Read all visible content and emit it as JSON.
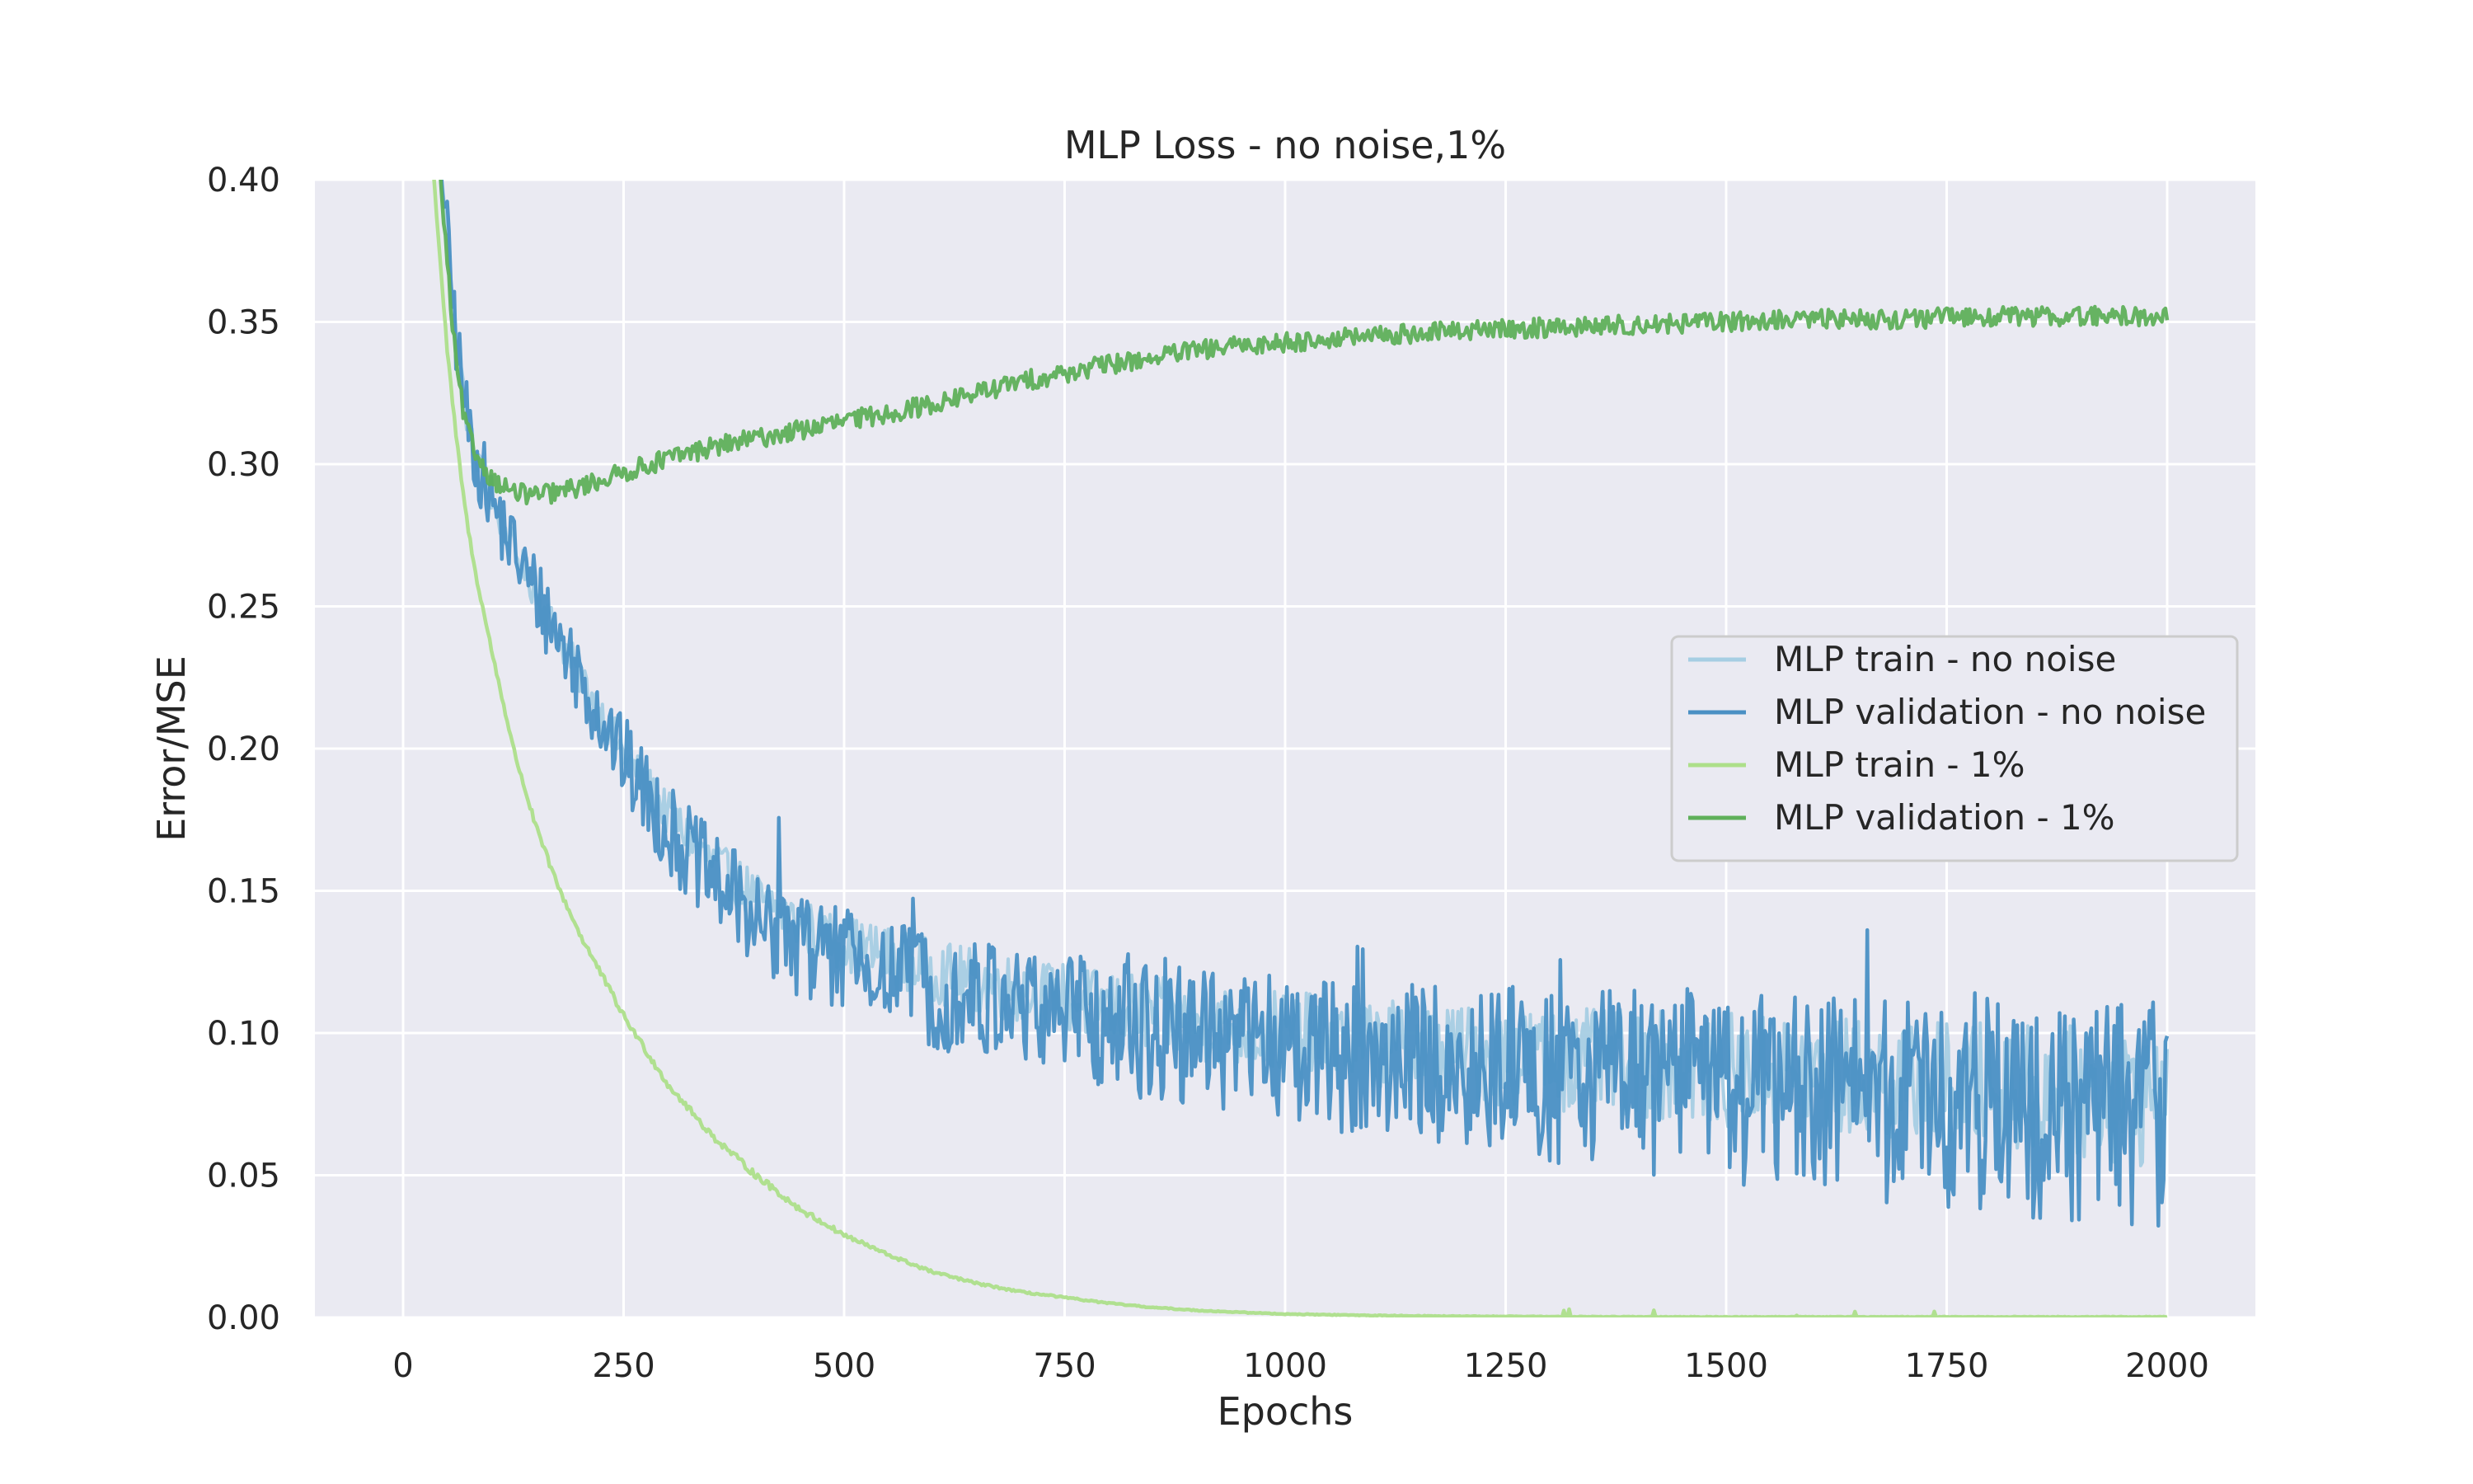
{
  "chart_data": {
    "type": "line",
    "title": "MLP Loss - no noise,1%",
    "xlabel": "Epochs",
    "ylabel": "Error/MSE",
    "xlim": [
      -100,
      2100
    ],
    "ylim": [
      0.0,
      0.4
    ],
    "xticks": [
      0,
      250,
      500,
      750,
      1000,
      1250,
      1500,
      1750,
      2000
    ],
    "yticks": [
      0.0,
      0.05,
      0.1,
      0.15,
      0.2,
      0.25,
      0.3,
      0.35,
      0.4
    ],
    "xtick_labels": [
      "0",
      "250",
      "500",
      "750",
      "1000",
      "1250",
      "1500",
      "1750",
      "2000"
    ],
    "ytick_labels": [
      "0.00",
      "0.05",
      "0.10",
      "0.15",
      "0.20",
      "0.25",
      "0.30",
      "0.35",
      "0.40"
    ],
    "grid": true,
    "background": "#eaeaf2",
    "legend_position": "center-right",
    "series": [
      {
        "name": "MLP train - no noise",
        "color": "#a6cee3",
        "x": [
          30,
          40,
          50,
          60,
          70,
          80,
          100,
          125,
          150,
          175,
          200,
          250,
          300,
          350,
          400,
          450,
          500,
          550,
          600,
          650,
          700,
          750,
          800,
          900,
          1000,
          1100,
          1200,
          1300,
          1400,
          1500,
          1600,
          1700,
          1800,
          1900,
          2000
        ],
        "y": [
          0.45,
          0.42,
          0.38,
          0.345,
          0.32,
          0.305,
          0.287,
          0.27,
          0.255,
          0.24,
          0.226,
          0.198,
          0.177,
          0.16,
          0.148,
          0.138,
          0.132,
          0.127,
          0.122,
          0.118,
          0.115,
          0.112,
          0.109,
          0.104,
          0.1,
          0.096,
          0.093,
          0.091,
          0.089,
          0.087,
          0.085,
          0.083,
          0.081,
          0.079,
          0.077
        ]
      },
      {
        "name": "MLP validation - no noise",
        "color": "#4a90c4",
        "x": [
          30,
          40,
          50,
          60,
          70,
          80,
          100,
          125,
          150,
          175,
          200,
          250,
          300,
          350,
          400,
          450,
          500,
          550,
          600,
          650,
          700,
          750,
          800,
          900,
          1000,
          1100,
          1200,
          1300,
          1400,
          1500,
          1600,
          1700,
          1800,
          1900,
          2000
        ],
        "y": [
          0.45,
          0.42,
          0.38,
          0.345,
          0.32,
          0.305,
          0.287,
          0.27,
          0.255,
          0.24,
          0.226,
          0.196,
          0.172,
          0.154,
          0.141,
          0.131,
          0.125,
          0.12,
          0.116,
          0.112,
          0.109,
          0.106,
          0.103,
          0.098,
          0.094,
          0.09,
          0.087,
          0.085,
          0.083,
          0.081,
          0.079,
          0.077,
          0.075,
          0.074,
          0.073
        ]
      },
      {
        "name": "MLP train - 1%",
        "color": "#addf8a",
        "x": [
          30,
          40,
          50,
          60,
          70,
          80,
          100,
          125,
          150,
          175,
          200,
          250,
          300,
          350,
          400,
          450,
          500,
          550,
          600,
          650,
          700,
          750,
          800,
          850,
          900,
          950,
          1000,
          1100,
          1200,
          1300,
          1400,
          1500,
          1600,
          1700,
          1800,
          1900,
          2000
        ],
        "y": [
          0.42,
          0.38,
          0.34,
          0.31,
          0.285,
          0.265,
          0.235,
          0.2,
          0.173,
          0.152,
          0.135,
          0.106,
          0.082,
          0.064,
          0.05,
          0.038,
          0.029,
          0.022,
          0.016,
          0.012,
          0.009,
          0.007,
          0.005,
          0.0035,
          0.0025,
          0.0018,
          0.0012,
          0.0007,
          0.0004,
          0.0003,
          0.0002,
          0.0002,
          0.0002,
          0.0002,
          0.0002,
          0.0002,
          0.0002
        ]
      },
      {
        "name": "MLP validation - 1%",
        "color": "#5fb05a",
        "x": [
          30,
          40,
          50,
          60,
          70,
          80,
          100,
          125,
          150,
          175,
          200,
          250,
          300,
          350,
          400,
          450,
          500,
          550,
          600,
          650,
          700,
          750,
          800,
          900,
          1000,
          1100,
          1200,
          1300,
          1400,
          1500,
          1600,
          1700,
          1800,
          1900,
          2000
        ],
        "y": [
          0.45,
          0.41,
          0.37,
          0.335,
          0.315,
          0.305,
          0.295,
          0.29,
          0.289,
          0.29,
          0.292,
          0.297,
          0.302,
          0.306,
          0.309,
          0.312,
          0.315,
          0.318,
          0.321,
          0.325,
          0.329,
          0.332,
          0.335,
          0.34,
          0.343,
          0.345,
          0.347,
          0.348,
          0.349,
          0.35,
          0.351,
          0.351,
          0.352,
          0.352,
          0.352
        ]
      }
    ]
  }
}
